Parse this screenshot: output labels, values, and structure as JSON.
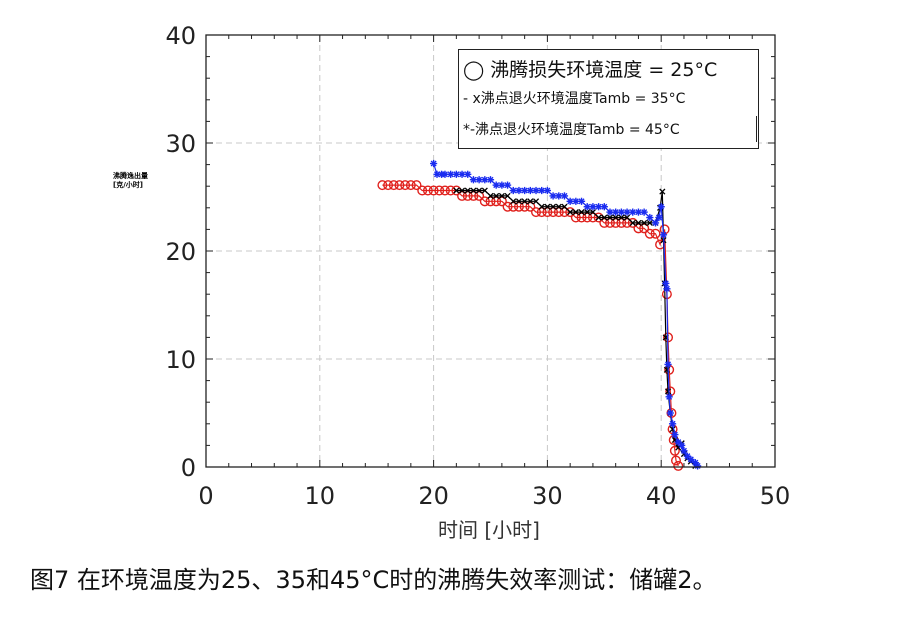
{
  "chart_data": {
    "type": "scatter",
    "ylabel_lines": [
      "沸腾逸出量",
      "[克/小时]"
    ],
    "xlabel": "时间 [小时]",
    "xlim": [
      0,
      50
    ],
    "ylim": [
      0,
      40
    ],
    "xticks": [
      "0",
      "10",
      "20",
      "30",
      "40",
      "50"
    ],
    "yticks": [
      "0",
      "10",
      "20",
      "30",
      "40"
    ],
    "grid": true,
    "legend_position": "top-right",
    "legend": [
      "◯ 沸腾损失环境温度 = 25°C",
      "- x沸点退火环境温度Tamb = 35°C",
      "*-沸点退火环境温度Tamb = 45°C"
    ],
    "series": [
      {
        "marker": "circle",
        "color": "#e0201c",
        "x": [
          15.5,
          16,
          16.5,
          17,
          17.5,
          18,
          18.5,
          19,
          19.5,
          20,
          20.5,
          21,
          21.5,
          22,
          22.5,
          23,
          23.5,
          24,
          24.5,
          25,
          25.5,
          26,
          26.5,
          27,
          27.5,
          28,
          28.5,
          29,
          29.5,
          30,
          30.5,
          31,
          31.5,
          32,
          32.5,
          33,
          33.5,
          34,
          34.5,
          35,
          35.5,
          36,
          36.5,
          37,
          37.5,
          38,
          38.5,
          39,
          39.5,
          39.9,
          40.3,
          40.5,
          40.6,
          40.7,
          40.8,
          40.9,
          41.0,
          41.1,
          41.2,
          41.3,
          41.5
        ],
        "y": [
          26.1,
          26.1,
          26.1,
          26.1,
          26.1,
          26.1,
          26.1,
          25.6,
          25.6,
          25.6,
          25.6,
          25.6,
          25.6,
          25.6,
          25.1,
          25.1,
          25.1,
          25.1,
          24.6,
          24.6,
          24.6,
          24.6,
          24.1,
          24.1,
          24.1,
          24.1,
          24.1,
          23.6,
          23.6,
          23.6,
          23.6,
          23.6,
          23.6,
          23.6,
          23.1,
          23.1,
          23.1,
          23.1,
          23.1,
          22.6,
          22.6,
          22.6,
          22.6,
          22.6,
          22.6,
          22.1,
          22.1,
          21.6,
          21.6,
          20.6,
          22.0,
          16.0,
          12.0,
          9.0,
          7.0,
          5.0,
          3.5,
          2.5,
          1.5,
          0.6,
          0.1
        ]
      },
      {
        "marker": "x",
        "color": "#000000",
        "x": [
          22,
          22.5,
          23,
          23.5,
          24,
          24.5,
          25,
          25.5,
          26,
          26.5,
          27,
          27.5,
          28,
          28.5,
          29,
          29.5,
          30,
          30.5,
          31,
          31.5,
          32,
          32.5,
          33,
          33.5,
          34,
          34.5,
          35,
          35.5,
          36,
          36.5,
          37,
          37.5,
          38,
          38.5,
          39,
          39.5,
          39.9,
          40.1,
          40.2,
          40.3,
          40.4,
          40.5,
          40.6,
          40.8,
          41.0,
          41.2,
          41.5,
          41.8,
          42.0,
          42.3,
          42.6,
          43.0
        ],
        "y": [
          25.6,
          25.6,
          25.6,
          25.6,
          25.6,
          25.6,
          25.1,
          25.1,
          25.1,
          25.1,
          24.6,
          24.6,
          24.6,
          24.6,
          24.6,
          24.1,
          24.1,
          24.1,
          24.1,
          24.1,
          23.6,
          23.6,
          23.6,
          23.6,
          23.6,
          23.1,
          23.1,
          23.1,
          23.1,
          23.1,
          23.1,
          22.6,
          22.6,
          22.6,
          22.6,
          22.6,
          24.0,
          25.5,
          21.0,
          17.0,
          12.0,
          9.0,
          7.0,
          5.0,
          3.5,
          2.5,
          1.8,
          2.2,
          1.2,
          0.8,
          0.5,
          0.1
        ]
      },
      {
        "marker": "star",
        "color": "#1a2cf0",
        "x": [
          20,
          20.3,
          20.7,
          21,
          21.5,
          22,
          22.5,
          23,
          23.5,
          24,
          24.5,
          25,
          25.5,
          26,
          26.5,
          27,
          27.5,
          28,
          28.5,
          29,
          29.5,
          30,
          30.5,
          31,
          31.5,
          32,
          32.5,
          33,
          33.5,
          34,
          34.5,
          35,
          35.5,
          36,
          36.5,
          37,
          37.5,
          38,
          38.5,
          39,
          39.5,
          39.8,
          40.0,
          40.2,
          40.4,
          40.5,
          40.6,
          40.7,
          40.8,
          41.0,
          41.2,
          41.5,
          41.8,
          42.0,
          42.3,
          42.6,
          43.0,
          43.2
        ],
        "y": [
          28.1,
          27.1,
          27.1,
          27.1,
          27.1,
          27.1,
          27.1,
          27.1,
          26.6,
          26.6,
          26.6,
          26.6,
          26.1,
          26.1,
          26.1,
          25.6,
          25.6,
          25.6,
          25.6,
          25.6,
          25.6,
          25.6,
          25.1,
          25.1,
          25.1,
          24.6,
          24.6,
          24.6,
          24.1,
          24.1,
          24.1,
          24.1,
          23.6,
          23.6,
          23.6,
          23.6,
          23.6,
          23.6,
          23.6,
          23.1,
          22.6,
          23.1,
          24.1,
          21.5,
          17.0,
          16.5,
          9.5,
          6.5,
          5.0,
          4.0,
          3.0,
          2.3,
          2.0,
          1.5,
          1.0,
          0.7,
          0.4,
          0.1
        ]
      }
    ]
  },
  "caption": "图7 在环境温度为25、35和45°C时的沸腾失效率测试：储罐2。"
}
